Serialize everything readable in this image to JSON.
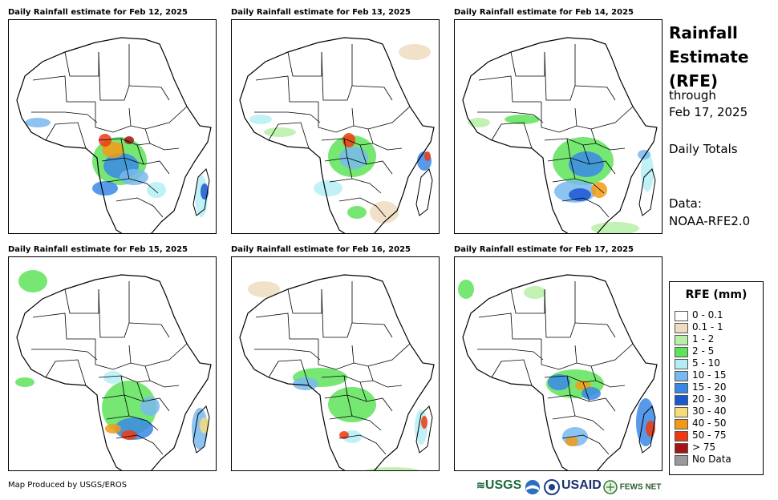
{
  "panels": [
    {
      "title": "Daily Rainfall estimate for Feb 12, 2025"
    },
    {
      "title": "Daily Rainfall estimate for Feb 13, 2025"
    },
    {
      "title": "Daily Rainfall estimate for Feb 14, 2025"
    },
    {
      "title": "Daily Rainfall estimate for Feb 15, 2025"
    },
    {
      "title": "Daily Rainfall estimate for Feb 16, 2025"
    },
    {
      "title": "Daily Rainfall estimate for Feb 17, 2025"
    }
  ],
  "side": {
    "title_line1": "Rainfall",
    "title_line2": "Estimate",
    "title_line3": "(RFE)",
    "through": "through",
    "date": "Feb 17, 2025",
    "totals": "Daily Totals",
    "data_label": "Data:",
    "data_source": "NOAA-RFE2.0"
  },
  "legend": {
    "title": "RFE (mm)",
    "items": [
      {
        "label": "0 - 0.1",
        "color": "#ffffff"
      },
      {
        "label": "0.1 - 1",
        "color": "#eedcc0"
      },
      {
        "label": "1 - 2",
        "color": "#b7efa7"
      },
      {
        "label": "2 - 5",
        "color": "#5fe35a"
      },
      {
        "label": "5 - 10",
        "color": "#b4eef4"
      },
      {
        "label": "10 - 15",
        "color": "#78b8ee"
      },
      {
        "label": "15 - 20",
        "color": "#3a88e6"
      },
      {
        "label": "20 - 30",
        "color": "#1a58d0"
      },
      {
        "label": "30 - 40",
        "color": "#f7dc7c"
      },
      {
        "label": "40 - 50",
        "color": "#f29a16"
      },
      {
        "label": "50 - 75",
        "color": "#ee3a10"
      },
      {
        "label": "> 75",
        "color": "#a41414"
      },
      {
        "label": "No Data",
        "color": "#999999"
      }
    ]
  },
  "footer": {
    "credit": "Map Produced by USGS/EROS",
    "logo_usgs": "USGS",
    "logo_usaid": "USAID",
    "logo_fews": "FEWS NET"
  }
}
